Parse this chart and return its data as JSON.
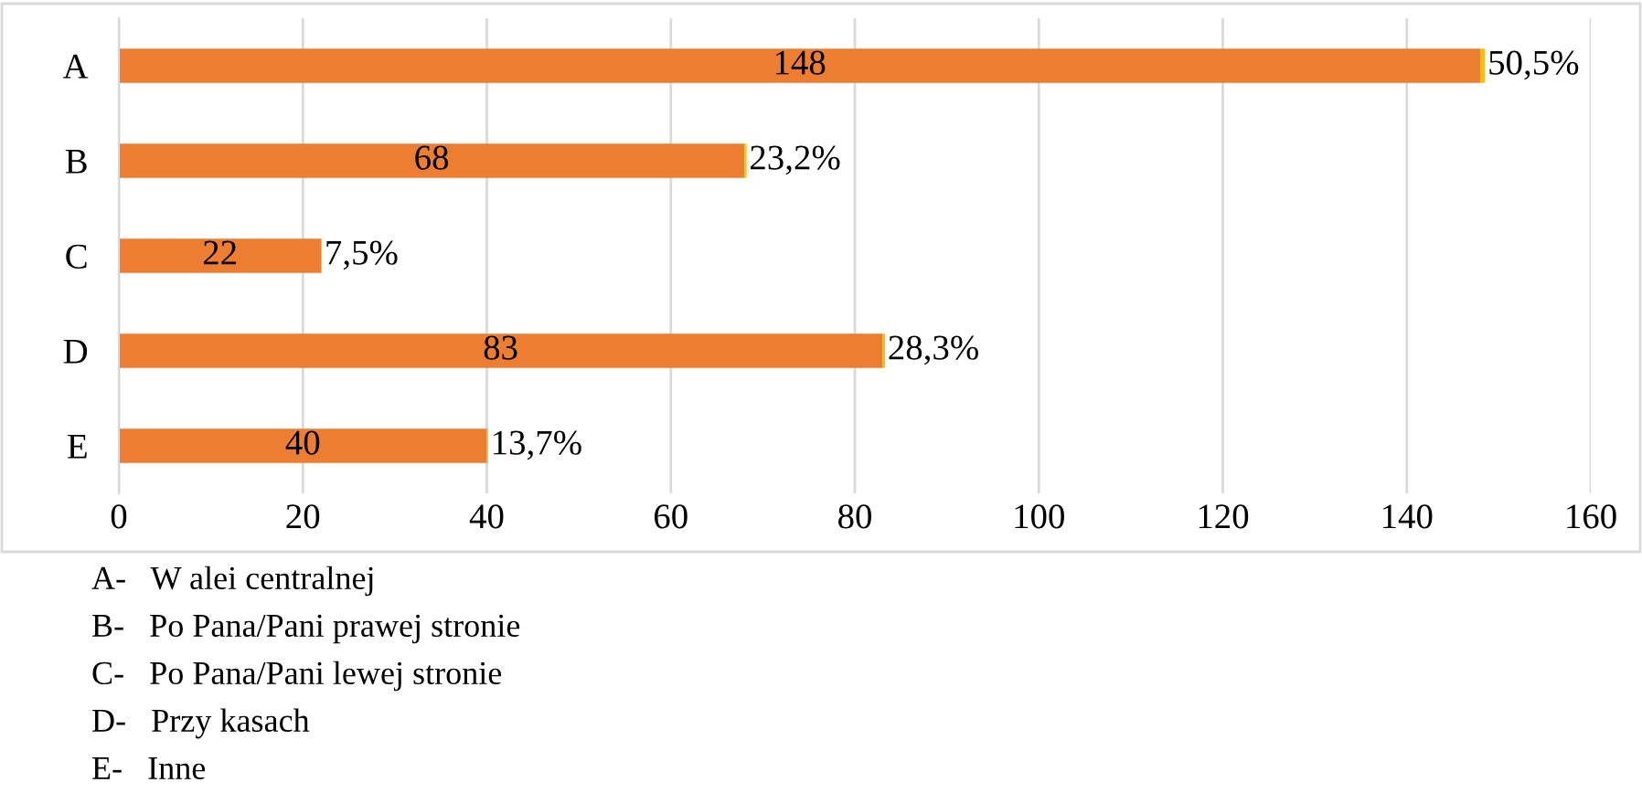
{
  "chart_data": {
    "type": "bar",
    "orientation": "horizontal",
    "stacked": true,
    "categories": [
      "A",
      "B",
      "C",
      "D",
      "E"
    ],
    "series": [
      {
        "color": "#ed7d31",
        "values": [
          148,
          68,
          22,
          83,
          40
        ],
        "value_labels": [
          "148",
          "68",
          "22",
          "83",
          "40"
        ]
      },
      {
        "color": "#ffc000",
        "values": [
          0.505,
          0.232,
          0.075,
          0.283,
          0.137
        ],
        "value_labels": [
          "50,5%",
          "23,2%",
          "7,5%",
          "28,3%",
          "13,7%"
        ]
      }
    ],
    "xlim": [
      0,
      160
    ],
    "xticks": [
      0,
      20,
      40,
      60,
      80,
      100,
      120,
      140,
      160
    ],
    "grid": "x",
    "annotations": [
      "A-   W alei centralnej",
      "B-   Po Pana/Pani prawej stronie",
      "C-   Po Pana/Pani lewej stronie",
      "D-   Przy kasach",
      "E-   Inne"
    ]
  }
}
